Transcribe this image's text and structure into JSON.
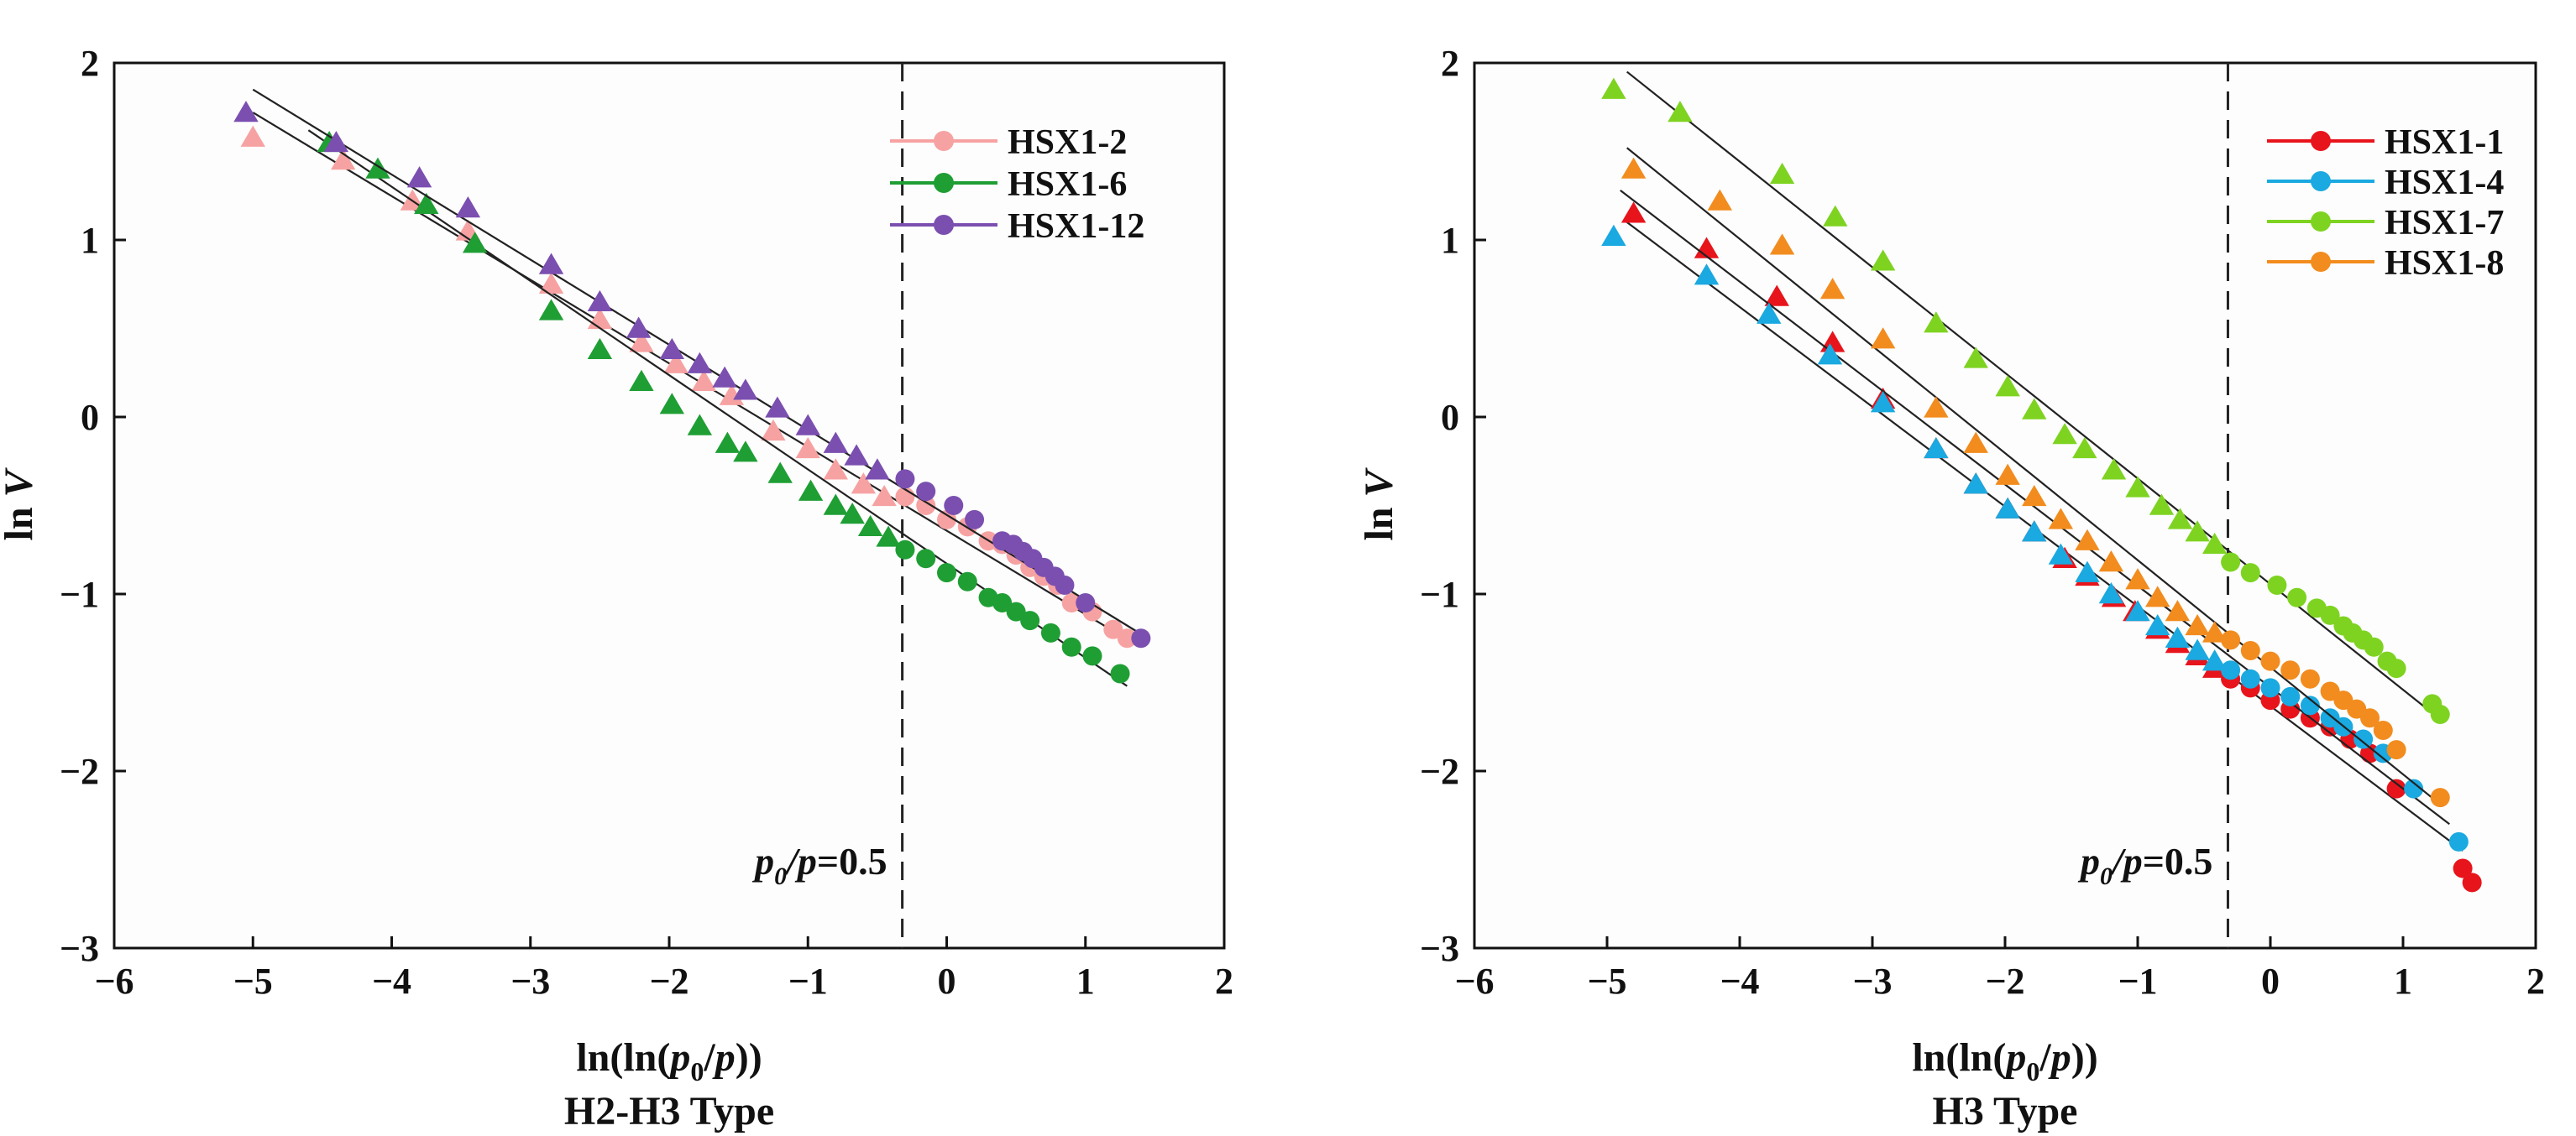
{
  "chart_data": [
    {
      "type": "scatter",
      "caption": "H2-H3 Type",
      "xlabel_parts": {
        "a": "ln(ln(",
        "p": "p",
        "sub": "0",
        "b": "/",
        "p2": "p",
        "c": "))"
      },
      "ylabel_parts": {
        "a": "ln",
        "b": "V"
      },
      "xlim": [
        -6,
        2
      ],
      "ylim": [
        -3,
        2
      ],
      "xticks": [
        -6,
        -5,
        -4,
        -3,
        -2,
        -1,
        0,
        1,
        2
      ],
      "yticks": [
        -3,
        -2,
        -1,
        0,
        1,
        2
      ],
      "divider_x": -0.32,
      "annotation": {
        "p": "p",
        "sub": "0",
        "rest": "/",
        "p2": "p",
        "val": "=0.5"
      },
      "legend_position": "top-right",
      "series": [
        {
          "name": "HSX1-2",
          "color": "#f7a2a2",
          "triangles": [
            [
              -5.0,
              1.58
            ],
            [
              -4.35,
              1.45
            ],
            [
              -3.85,
              1.22
            ],
            [
              -3.45,
              1.05
            ],
            [
              -2.85,
              0.75
            ],
            [
              -2.5,
              0.55
            ],
            [
              -2.2,
              0.42
            ],
            [
              -1.95,
              0.3
            ],
            [
              -1.75,
              0.2
            ],
            [
              -1.55,
              0.12
            ],
            [
              -1.25,
              -0.08
            ],
            [
              -1.0,
              -0.18
            ],
            [
              -0.8,
              -0.3
            ],
            [
              -0.6,
              -0.38
            ],
            [
              -0.45,
              -0.45
            ]
          ],
          "circles": [
            [
              -0.3,
              -0.45
            ],
            [
              -0.15,
              -0.5
            ],
            [
              0.0,
              -0.58
            ],
            [
              0.15,
              -0.62
            ],
            [
              0.3,
              -0.7
            ],
            [
              0.4,
              -0.72
            ],
            [
              0.5,
              -0.78
            ],
            [
              0.6,
              -0.85
            ],
            [
              0.7,
              -0.9
            ],
            [
              0.8,
              -0.95
            ],
            [
              0.9,
              -1.05
            ],
            [
              1.05,
              -1.1
            ],
            [
              1.2,
              -1.2
            ],
            [
              1.3,
              -1.25
            ]
          ],
          "fit": [
            [
              -5.0,
              1.72
            ],
            [
              1.35,
              -1.28
            ]
          ]
        },
        {
          "name": "HSX1-6",
          "color": "#1f9e34",
          "triangles": [
            [
              -4.45,
              1.55
            ],
            [
              -4.1,
              1.4
            ],
            [
              -3.75,
              1.2
            ],
            [
              -3.4,
              0.98
            ],
            [
              -2.85,
              0.6
            ],
            [
              -2.5,
              0.38
            ],
            [
              -2.2,
              0.2
            ],
            [
              -1.98,
              0.07
            ],
            [
              -1.78,
              -0.05
            ],
            [
              -1.58,
              -0.15
            ],
            [
              -1.45,
              -0.2
            ],
            [
              -1.2,
              -0.32
            ],
            [
              -0.98,
              -0.42
            ],
            [
              -0.8,
              -0.5
            ],
            [
              -0.68,
              -0.55
            ],
            [
              -0.55,
              -0.62
            ],
            [
              -0.42,
              -0.68
            ]
          ],
          "circles": [
            [
              -0.3,
              -0.75
            ],
            [
              -0.15,
              -0.8
            ],
            [
              0.0,
              -0.88
            ],
            [
              0.15,
              -0.93
            ],
            [
              0.3,
              -1.02
            ],
            [
              0.4,
              -1.05
            ],
            [
              0.5,
              -1.1
            ],
            [
              0.6,
              -1.15
            ],
            [
              0.75,
              -1.22
            ],
            [
              0.9,
              -1.3
            ],
            [
              1.05,
              -1.35
            ],
            [
              1.25,
              -1.45
            ]
          ],
          "fit": [
            [
              -4.6,
              1.62
            ],
            [
              1.3,
              -1.52
            ]
          ]
        },
        {
          "name": "HSX1-12",
          "color": "#7b4fb0",
          "triangles": [
            [
              -5.05,
              1.72
            ],
            [
              -4.4,
              1.55
            ],
            [
              -3.8,
              1.35
            ],
            [
              -3.45,
              1.18
            ],
            [
              -2.85,
              0.86
            ],
            [
              -2.5,
              0.65
            ],
            [
              -2.22,
              0.5
            ],
            [
              -1.98,
              0.38
            ],
            [
              -1.78,
              0.3
            ],
            [
              -1.6,
              0.22
            ],
            [
              -1.45,
              0.15
            ],
            [
              -1.22,
              0.05
            ],
            [
              -1.0,
              -0.05
            ],
            [
              -0.8,
              -0.15
            ],
            [
              -0.65,
              -0.22
            ],
            [
              -0.5,
              -0.3
            ]
          ],
          "circles": [
            [
              -0.3,
              -0.35
            ],
            [
              -0.15,
              -0.42
            ],
            [
              0.05,
              -0.5
            ],
            [
              0.2,
              -0.58
            ],
            [
              0.4,
              -0.7
            ],
            [
              0.48,
              -0.72
            ],
            [
              0.55,
              -0.76
            ],
            [
              0.62,
              -0.8
            ],
            [
              0.7,
              -0.85
            ],
            [
              0.78,
              -0.9
            ],
            [
              0.85,
              -0.95
            ],
            [
              1.0,
              -1.05
            ],
            [
              1.4,
              -1.25
            ]
          ],
          "fit": [
            [
              -5.0,
              1.85
            ],
            [
              1.45,
              -1.25
            ]
          ]
        }
      ]
    },
    {
      "type": "scatter",
      "caption": "H3 Type",
      "xlabel_parts": {
        "a": "ln(ln(",
        "p": "p",
        "sub": "0",
        "b": "/",
        "p2": "p",
        "c": "))"
      },
      "ylabel_parts": {
        "a": "ln",
        "b": "V"
      },
      "xlim": [
        -6,
        2
      ],
      "ylim": [
        -3,
        2
      ],
      "xticks": [
        -6,
        -5,
        -4,
        -3,
        -2,
        -1,
        0,
        1,
        2
      ],
      "yticks": [
        -3,
        -2,
        -1,
        0,
        1,
        2
      ],
      "divider_x": -0.32,
      "annotation": {
        "p": "p",
        "sub": "0",
        "rest": "/",
        "p2": "p",
        "val": "=0.5"
      },
      "legend_position": "top-right",
      "series": [
        {
          "name": "HSX1-1",
          "color": "#e8141c",
          "triangles": [
            [
              -4.8,
              1.15
            ],
            [
              -4.25,
              0.95
            ],
            [
              -3.72,
              0.68
            ],
            [
              -3.3,
              0.42
            ],
            [
              -2.92,
              0.1
            ],
            [
              -2.52,
              -0.18
            ],
            [
              -2.22,
              -0.38
            ],
            [
              -1.98,
              -0.52
            ],
            [
              -1.78,
              -0.65
            ],
            [
              -1.55,
              -0.8
            ],
            [
              -1.38,
              -0.9
            ],
            [
              -1.18,
              -1.02
            ],
            [
              -1.02,
              -1.1
            ],
            [
              -0.85,
              -1.2
            ],
            [
              -0.7,
              -1.28
            ],
            [
              -0.55,
              -1.35
            ],
            [
              -0.42,
              -1.42
            ]
          ],
          "circles": [
            [
              -0.3,
              -1.48
            ],
            [
              -0.15,
              -1.53
            ],
            [
              0.0,
              -1.6
            ],
            [
              0.15,
              -1.65
            ],
            [
              0.3,
              -1.7
            ],
            [
              0.45,
              -1.75
            ],
            [
              0.6,
              -1.82
            ],
            [
              0.75,
              -1.9
            ],
            [
              0.95,
              -2.1
            ],
            [
              1.45,
              -2.55
            ],
            [
              1.52,
              -2.63
            ]
          ],
          "fit": [
            [
              -4.85,
              1.1
            ],
            [
              1.45,
              -2.45
            ]
          ]
        },
        {
          "name": "HSX1-4",
          "color": "#1aa9e0",
          "triangles": [
            [
              -4.95,
              1.02
            ],
            [
              -4.25,
              0.8
            ],
            [
              -3.78,
              0.58
            ],
            [
              -3.32,
              0.35
            ],
            [
              -2.92,
              0.08
            ],
            [
              -2.52,
              -0.18
            ],
            [
              -2.22,
              -0.38
            ],
            [
              -1.98,
              -0.52
            ],
            [
              -1.78,
              -0.65
            ],
            [
              -1.58,
              -0.78
            ],
            [
              -1.38,
              -0.88
            ],
            [
              -1.2,
              -1.0
            ],
            [
              -1.0,
              -1.1
            ],
            [
              -0.85,
              -1.18
            ],
            [
              -0.7,
              -1.25
            ],
            [
              -0.55,
              -1.32
            ],
            [
              -0.42,
              -1.38
            ]
          ],
          "circles": [
            [
              -0.3,
              -1.43
            ],
            [
              -0.15,
              -1.48
            ],
            [
              0.0,
              -1.53
            ],
            [
              0.15,
              -1.58
            ],
            [
              0.3,
              -1.63
            ],
            [
              0.45,
              -1.7
            ],
            [
              0.55,
              -1.75
            ],
            [
              0.7,
              -1.82
            ],
            [
              0.85,
              -1.9
            ],
            [
              1.08,
              -2.1
            ],
            [
              1.42,
              -2.4
            ]
          ],
          "fit": [
            [
              -4.9,
              1.28
            ],
            [
              1.35,
              -2.3
            ]
          ]
        },
        {
          "name": "HSX1-7",
          "color": "#7ed321",
          "triangles": [
            [
              -4.95,
              1.85
            ],
            [
              -4.45,
              1.72
            ],
            [
              -3.68,
              1.37
            ],
            [
              -3.28,
              1.13
            ],
            [
              -2.92,
              0.88
            ],
            [
              -2.52,
              0.53
            ],
            [
              -2.22,
              0.33
            ],
            [
              -1.98,
              0.17
            ],
            [
              -1.78,
              0.04
            ],
            [
              -1.55,
              -0.1
            ],
            [
              -1.4,
              -0.18
            ],
            [
              -1.18,
              -0.3
            ],
            [
              -1.0,
              -0.4
            ],
            [
              -0.82,
              -0.5
            ],
            [
              -0.68,
              -0.58
            ],
            [
              -0.55,
              -0.65
            ],
            [
              -0.42,
              -0.72
            ]
          ],
          "circles": [
            [
              -0.3,
              -0.82
            ],
            [
              -0.15,
              -0.88
            ],
            [
              0.05,
              -0.95
            ],
            [
              0.2,
              -1.02
            ],
            [
              0.35,
              -1.08
            ],
            [
              0.45,
              -1.12
            ],
            [
              0.55,
              -1.18
            ],
            [
              0.62,
              -1.22
            ],
            [
              0.7,
              -1.26
            ],
            [
              0.78,
              -1.3
            ],
            [
              0.88,
              -1.38
            ],
            [
              0.95,
              -1.42
            ],
            [
              1.22,
              -1.62
            ],
            [
              1.28,
              -1.68
            ]
          ],
          "fit": [
            [
              -4.85,
              1.95
            ],
            [
              1.3,
              -1.72
            ]
          ]
        },
        {
          "name": "HSX1-8",
          "color": "#f28c1e",
          "triangles": [
            [
              -4.8,
              1.4
            ],
            [
              -4.15,
              1.22
            ],
            [
              -3.68,
              0.97
            ],
            [
              -3.3,
              0.72
            ],
            [
              -2.92,
              0.44
            ],
            [
              -2.52,
              0.05
            ],
            [
              -2.22,
              -0.15
            ],
            [
              -1.98,
              -0.33
            ],
            [
              -1.78,
              -0.45
            ],
            [
              -1.58,
              -0.58
            ],
            [
              -1.38,
              -0.7
            ],
            [
              -1.2,
              -0.82
            ],
            [
              -1.0,
              -0.92
            ],
            [
              -0.85,
              -1.02
            ],
            [
              -0.7,
              -1.1
            ],
            [
              -0.55,
              -1.18
            ],
            [
              -0.42,
              -1.22
            ]
          ],
          "circles": [
            [
              -0.3,
              -1.26
            ],
            [
              -0.15,
              -1.32
            ],
            [
              0.0,
              -1.38
            ],
            [
              0.15,
              -1.43
            ],
            [
              0.3,
              -1.48
            ],
            [
              0.45,
              -1.55
            ],
            [
              0.55,
              -1.6
            ],
            [
              0.65,
              -1.65
            ],
            [
              0.75,
              -1.7
            ],
            [
              0.85,
              -1.77
            ],
            [
              0.95,
              -1.88
            ],
            [
              1.28,
              -2.15
            ]
          ],
          "fit": [
            [
              -4.85,
              1.52
            ],
            [
              1.3,
              -2.2
            ]
          ]
        }
      ]
    }
  ]
}
